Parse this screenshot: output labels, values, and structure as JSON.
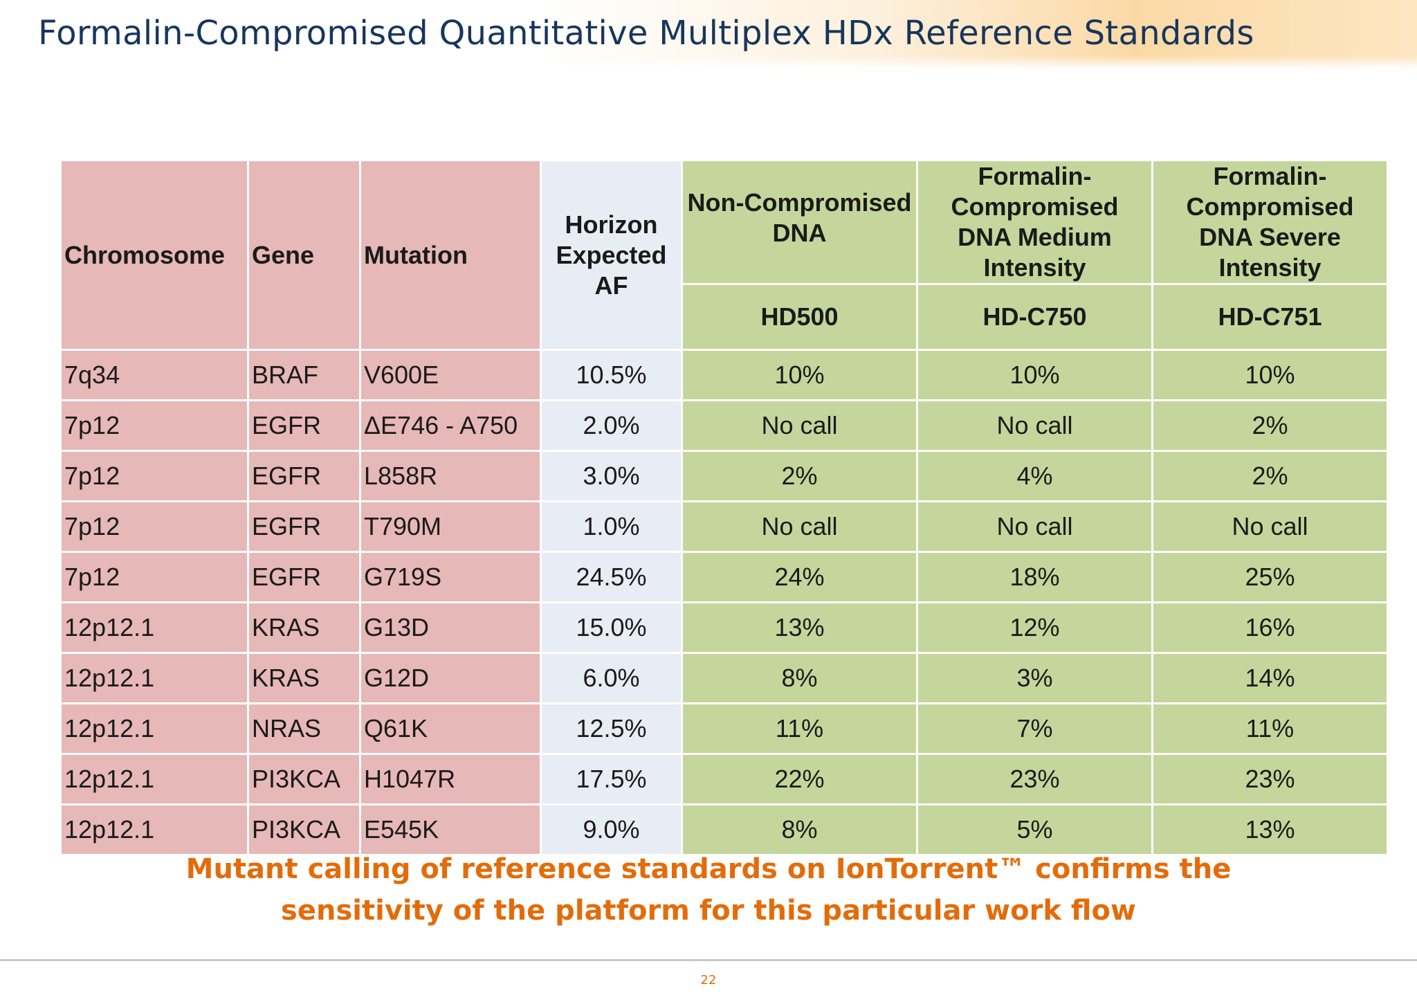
{
  "title": "Formalin-Compromised Quantitative Multiplex HDx Reference Standards",
  "table": {
    "headers": {
      "chromosome": "Chromosome",
      "gene": "Gene",
      "mutation": "Mutation",
      "expected_af": "Horizon Expected AF",
      "noncomp": "Non-Compromised DNA",
      "medium": "Formalin-Compromised DNA Medium Intensity",
      "severe": "Formalin-Compromised DNA Severe Intensity",
      "noncomp_id": "HD500",
      "medium_id": "HD-C750",
      "severe_id": "HD-C751"
    },
    "rows": [
      {
        "chromosome": "7q34",
        "gene": "BRAF",
        "mutation": "V600E",
        "expected": "10.5%",
        "hd500": "10%",
        "c750": "10%",
        "c751": "10%"
      },
      {
        "chromosome": "7p12",
        "gene": "EGFR",
        "mutation": "ΔE746 - A750",
        "expected": "2.0%",
        "hd500": "No call",
        "c750": "No call",
        "c751": "2%"
      },
      {
        "chromosome": "7p12",
        "gene": "EGFR",
        "mutation": "L858R",
        "expected": "3.0%",
        "hd500": "2%",
        "c750": "4%",
        "c751": "2%"
      },
      {
        "chromosome": "7p12",
        "gene": "EGFR",
        "mutation": "T790M",
        "expected": "1.0%",
        "hd500": "No call",
        "c750": "No call",
        "c751": "No call"
      },
      {
        "chromosome": "7p12",
        "gene": "EGFR",
        "mutation": "G719S",
        "expected": "24.5%",
        "hd500": "24%",
        "c750": "18%",
        "c751": "25%"
      },
      {
        "chromosome": "12p12.1",
        "gene": "KRAS",
        "mutation": "G13D",
        "expected": "15.0%",
        "hd500": "13%",
        "c750": "12%",
        "c751": "16%"
      },
      {
        "chromosome": "12p12.1",
        "gene": "KRAS",
        "mutation": "G12D",
        "expected": "6.0%",
        "hd500": "8%",
        "c750": "3%",
        "c751": "14%"
      },
      {
        "chromosome": "12p12.1",
        "gene": "NRAS",
        "mutation": "Q61K",
        "expected": "12.5%",
        "hd500": "11%",
        "c750": "7%",
        "c751": "11%"
      },
      {
        "chromosome": "12p12.1",
        "gene": "PI3KCA",
        "mutation": "H1047R",
        "expected": "17.5%",
        "hd500": "22%",
        "c750": "23%",
        "c751": "23%"
      },
      {
        "chromosome": "12p12.1",
        "gene": "PI3KCA",
        "mutation": "E545K",
        "expected": "9.0%",
        "hd500": "8%",
        "c750": "5%",
        "c751": "13%"
      }
    ]
  },
  "conclusion": {
    "line1": "Mutant calling of reference standards on IonTorrent™ confirms the",
    "line2": "sensitivity of the platform for this particular work flow"
  },
  "page_number": "22",
  "colors": {
    "title": "#17365d",
    "pink": "#e6b8b7",
    "grey": "#e8ecf4",
    "green": "#c4d69b",
    "accent_orange": "#e36c0a"
  }
}
